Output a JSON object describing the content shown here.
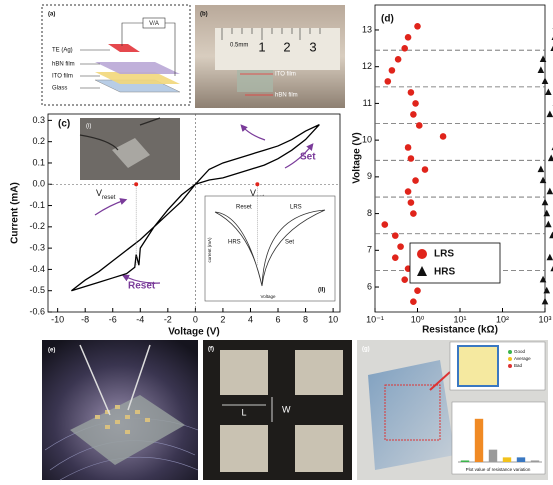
{
  "chart_data": [
    {
      "type": "line",
      "x_label": "Voltage (V)",
      "y_label": "Current (mA)",
      "color": "#000000",
      "x": [
        0,
        1,
        2,
        3,
        4,
        5,
        6,
        7,
        8,
        9,
        8,
        7,
        6,
        5,
        4,
        3,
        2,
        1,
        0,
        -1,
        -2,
        -3,
        -4,
        -5,
        -6,
        -7,
        -8,
        -9,
        -8,
        -7,
        -6,
        -5,
        -4.4,
        -4.3,
        -4.1,
        -4,
        -3,
        -2,
        -1,
        0
      ],
      "y": [
        0,
        0.02,
        0.03,
        0.05,
        0.07,
        0.09,
        0.12,
        0.16,
        0.21,
        0.28,
        0.25,
        0.21,
        0.18,
        0.16,
        0.14,
        0.12,
        0.1,
        0.07,
        0,
        -0.08,
        -0.14,
        -0.2,
        -0.26,
        -0.31,
        -0.36,
        -0.41,
        -0.45,
        -0.5,
        -0.48,
        -0.46,
        -0.44,
        -0.42,
        -0.39,
        -0.33,
        -0.38,
        -0.3,
        -0.2,
        -0.12,
        -0.05,
        0
      ],
      "xlim": [
        -10.7,
        10.5
      ],
      "ylim": [
        -0.6,
        0.33
      ],
      "xticks": [
        -10,
        -8,
        -6,
        -4,
        -2,
        0,
        2,
        4,
        6,
        8,
        10
      ],
      "yticks": [
        -0.6,
        -0.5,
        -0.4,
        -0.3,
        -0.2,
        -0.1,
        {
          "value": 0,
          "label": "0.0"
        },
        0.1,
        0.2,
        0.3
      ],
      "markers": {
        "color": "#e0241b",
        "x": [
          -4.3,
          4.5
        ],
        "y": [
          0,
          0
        ]
      }
    },
    {
      "type": "scatter",
      "x_label": "Resistance (kΩ)",
      "y_label": "Voltage (V)",
      "log_x": true,
      "legend": "bottom-left",
      "xlim": [
        0.1,
        1000
      ],
      "ylim": [
        5.32,
        13.68
      ],
      "xticks": [
        {
          "value": 0.1,
          "label": "10⁻¹"
        },
        {
          "value": 1,
          "label": "10⁰"
        },
        {
          "value": 10,
          "label": "10¹"
        },
        {
          "value": 100,
          "label": "10²"
        },
        {
          "value": 1000,
          "label": "10³"
        }
      ],
      "yticks": [
        6,
        7,
        8,
        9,
        10,
        11,
        12,
        13
      ],
      "dashed_lines": [
        6.45,
        7.45,
        8.45,
        9.45,
        10.45,
        11.45,
        12.45
      ],
      "y": [
        5.6,
        5.9,
        6.2,
        6.5,
        6.8,
        7.1,
        7.4,
        7.7,
        8.0,
        8.3,
        8.6,
        8.9,
        9.2,
        9.5,
        9.8,
        10.1,
        10.4,
        10.7,
        11.0,
        11.3,
        11.6,
        11.9,
        12.2,
        12.5,
        12.8,
        13.1
      ],
      "series": [
        {
          "name": "LRS",
          "color": "#e0241b",
          "marker": "circle",
          "values": [
            0.8,
            1.0,
            0.5,
            0.6,
            0.3,
            0.4,
            0.3,
            0.17,
            0.8,
            0.7,
            0.6,
            0.9,
            1.5,
            0.7,
            0.6,
            4,
            1.1,
            0.8,
            0.9,
            0.7,
            0.2,
            0.25,
            0.35,
            0.5,
            0.6,
            1.0
          ]
        },
        {
          "name": "HRS",
          "color": "#111111",
          "marker": "triangle",
          "values": [
            1000,
            1100,
            900,
            1600,
            1300,
            2000,
            1500,
            1200,
            1100,
            1000,
            1300,
            900,
            800,
            1400,
            1700,
            2000,
            1900,
            1300,
            1800,
            1200,
            1000,
            800,
            900,
            1600,
            1700,
            1800
          ]
        }
      ]
    },
    {
      "type": "bar",
      "categories": [
        null,
        null,
        null,
        null,
        null,
        null
      ],
      "values": [
        1,
        28,
        8,
        3,
        3,
        1
      ],
      "colors": [
        "#3cb44b",
        "#f08a24",
        "#9a9a9a",
        "#f2c21b",
        "#3a78c2",
        "#9a9a9a"
      ],
      "ylim": [
        0,
        35
      ]
    }
  ],
  "panels": {
    "a": {
      "label": "(a)",
      "meter": "V/A",
      "layers": [
        "TE (Ag)",
        "hBN film",
        "ITO film",
        "Glass"
      ]
    },
    "b": {
      "label": "(b)",
      "scale": "0.5mm",
      "ruler": [
        "1",
        "2",
        "3"
      ],
      "films": [
        "ITO film",
        "hBN film"
      ]
    },
    "c": {
      "label": "(c)",
      "inset1": "(i)",
      "inset2": "(II)",
      "set": "Set",
      "reset": "Reset",
      "vreset": {
        "main": "V",
        "sub": "reset"
      },
      "vset": {
        "main": "V",
        "sub": "set"
      },
      "inset_texts": [
        "Reset",
        "LRS",
        "HRS",
        "Set"
      ],
      "inset_x": "Voltage",
      "inset_y": "current (mA)"
    },
    "d": {
      "label": "(d)"
    },
    "e": {
      "label": "(e)"
    },
    "f": {
      "label": "(f)",
      "length": "L",
      "width": "W"
    },
    "g": {
      "label": "(g)",
      "legend": [
        "Good",
        "Average",
        "Bad"
      ],
      "bar_x": "Plot value of resistance variation"
    }
  }
}
